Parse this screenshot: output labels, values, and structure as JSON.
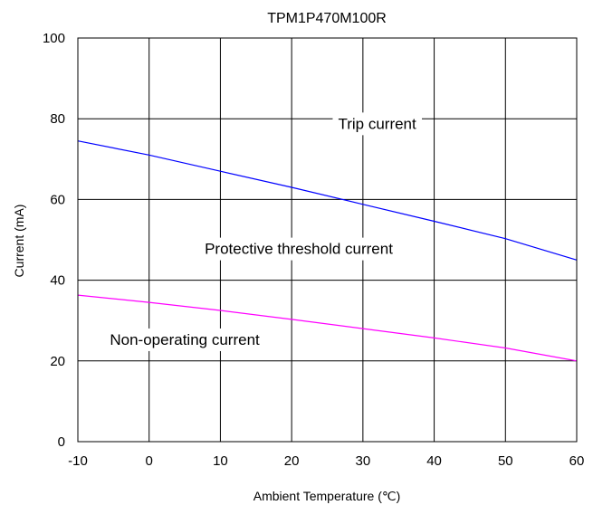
{
  "chart_data": {
    "type": "line",
    "title": "TPM1P470M100R",
    "xlabel": "Ambient Temperature (℃)",
    "ylabel": "Current (mA)",
    "xlim": [
      -10,
      60
    ],
    "ylim": [
      0,
      100
    ],
    "xticks": [
      -10,
      0,
      10,
      20,
      30,
      40,
      50,
      60
    ],
    "yticks": [
      0,
      20,
      40,
      60,
      80,
      100
    ],
    "grid": true,
    "series": [
      {
        "name": "Trip current",
        "color": "#0000ff",
        "x": [
          -10,
          0,
          10,
          20,
          30,
          40,
          50,
          60
        ],
        "y": [
          74.5,
          71,
          67,
          63,
          58.8,
          54.6,
          50.3,
          45
        ]
      },
      {
        "name": "Non-operating current",
        "color": "#ff00ff",
        "x": [
          -10,
          0,
          10,
          20,
          30,
          40,
          50,
          60
        ],
        "y": [
          36.3,
          34.5,
          32.5,
          30.3,
          28,
          25.7,
          23.2,
          20
        ]
      }
    ],
    "annotations": [
      {
        "text": "Trip current",
        "x": 32,
        "y": 77.5
      },
      {
        "text": "Protective threshold current",
        "x": 21,
        "y": 46.5
      },
      {
        "text": "Non-operating current",
        "x": 5,
        "y": 24
      }
    ]
  }
}
